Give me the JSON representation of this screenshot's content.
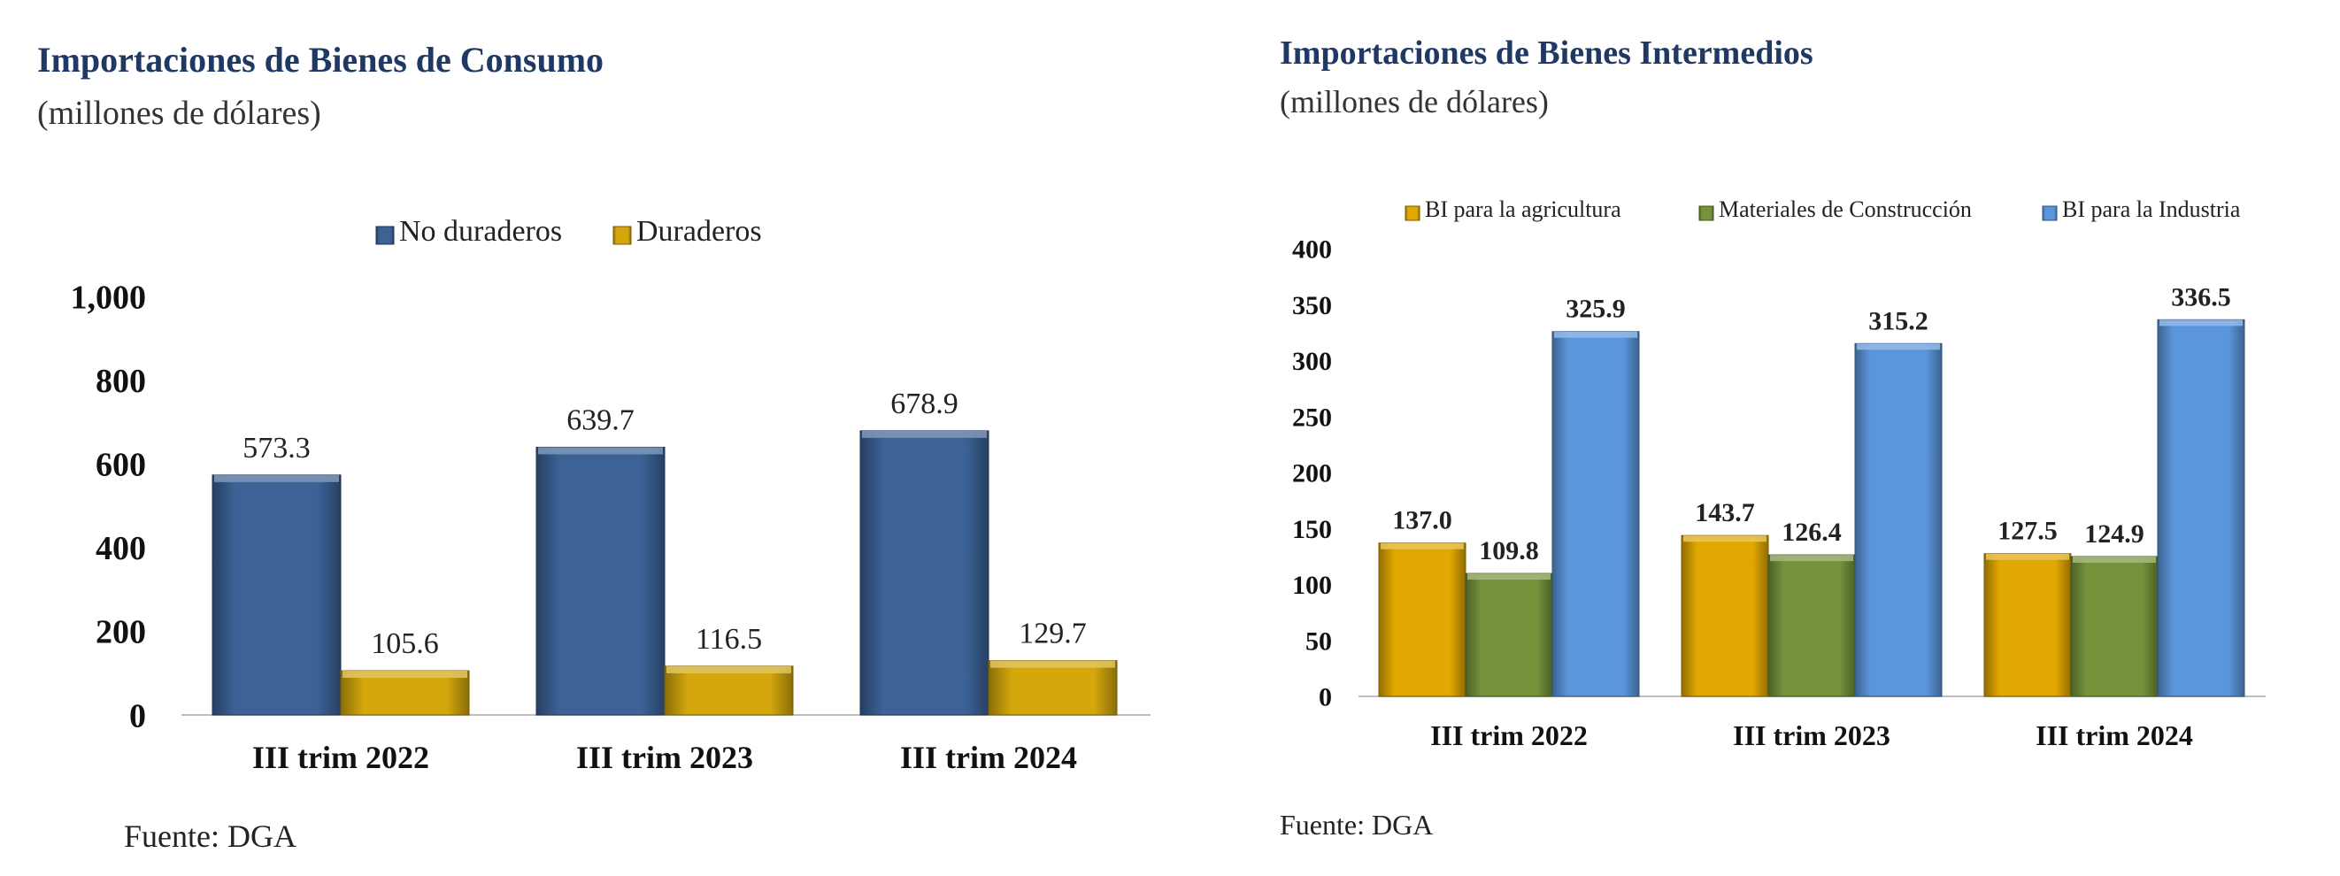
{
  "source_label": "Fuente: DGA",
  "chart_data": [
    {
      "type": "bar",
      "title": "Importaciones de Bienes de Consumo",
      "subtitle": "(millones de dólares)",
      "categories": [
        "III trim 2022",
        "III trim 2023",
        "III trim 2024"
      ],
      "series": [
        {
          "name": "No duraderos",
          "values": [
            573.3,
            639.7,
            678.9
          ],
          "color": "#3c6296"
        },
        {
          "name": "Duraderos",
          "values": [
            105.6,
            116.5,
            129.7
          ],
          "color": "#d4a80c"
        }
      ],
      "ylim": [
        0,
        1000
      ],
      "yticks": [
        "0",
        "200",
        "400",
        "600",
        "800",
        "1,000"
      ],
      "value_labels": [
        [
          "573.3",
          "639.7",
          "678.9"
        ],
        [
          "105.6",
          "116.5",
          "129.7"
        ]
      ],
      "legend": "top-center",
      "grid": false
    },
    {
      "type": "bar",
      "title": "Importaciones de Bienes Intermedios",
      "subtitle": "(millones de dólares)",
      "categories": [
        "III trim 2022",
        "III trim 2023",
        "III trim 2024"
      ],
      "series": [
        {
          "name": "BI para la agricultura",
          "values": [
            137.0,
            143.7,
            127.5
          ],
          "color": "#e0a800"
        },
        {
          "name": "Materiales de Construcción",
          "values": [
            109.8,
            126.4,
            124.9
          ],
          "color": "#76933c"
        },
        {
          "name": "BI para la Industria",
          "values": [
            325.9,
            315.2,
            336.5
          ],
          "color": "#5b96dc"
        }
      ],
      "ylim": [
        0,
        400
      ],
      "yticks": [
        "0",
        "50",
        "100",
        "150",
        "200",
        "250",
        "300",
        "350",
        "400"
      ],
      "value_labels": [
        [
          "137.0",
          "143.7",
          "127.5"
        ],
        [
          "109.8",
          "126.4",
          "124.9"
        ],
        [
          "325.9",
          "315.2",
          "336.5"
        ]
      ],
      "legend": "top",
      "grid": false
    }
  ]
}
